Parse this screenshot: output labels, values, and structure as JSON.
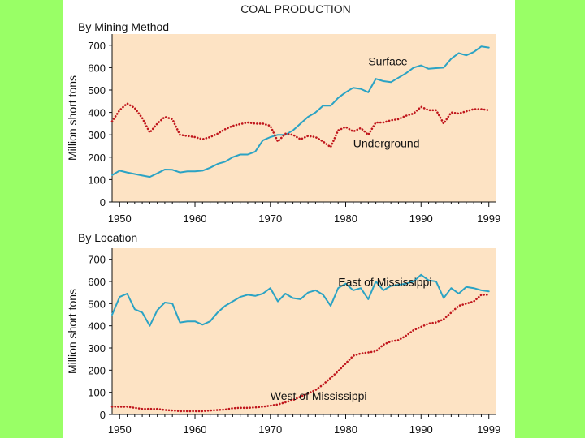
{
  "figure_title": "COAL PRODUCTION",
  "colors": {
    "background": "#99ff66",
    "plot_fill": "#fde3c4",
    "surface": "#2ba3c4",
    "underground": "#c0161c"
  },
  "chart_data": [
    {
      "type": "line",
      "title": "By Mining Method",
      "xlabel": "",
      "ylabel": "Million short tons",
      "xlim": [
        1949,
        2000
      ],
      "ylim": [
        0,
        750
      ],
      "xticks": [
        1950,
        1960,
        1970,
        1980,
        1990,
        1999
      ],
      "yticks": [
        0,
        100,
        200,
        300,
        400,
        500,
        600,
        700
      ],
      "x": [
        1949,
        1950,
        1951,
        1952,
        1953,
        1954,
        1955,
        1956,
        1957,
        1958,
        1959,
        1960,
        1961,
        1962,
        1963,
        1964,
        1965,
        1966,
        1967,
        1968,
        1969,
        1970,
        1971,
        1972,
        1973,
        1974,
        1975,
        1976,
        1977,
        1978,
        1979,
        1980,
        1981,
        1982,
        1983,
        1984,
        1985,
        1986,
        1987,
        1988,
        1989,
        1990,
        1991,
        1992,
        1993,
        1994,
        1995,
        1996,
        1997,
        1998,
        1999
      ],
      "series": [
        {
          "name": "Surface",
          "style": "solid",
          "values": [
            120,
            140,
            132,
            125,
            118,
            112,
            128,
            145,
            144,
            132,
            137,
            137,
            140,
            153,
            170,
            180,
            200,
            212,
            212,
            225,
            275,
            290,
            300,
            300,
            320,
            350,
            380,
            400,
            430,
            430,
            465,
            490,
            510,
            505,
            490,
            550,
            540,
            535,
            555,
            575,
            600,
            610,
            595,
            598,
            600,
            640,
            665,
            655,
            670,
            695,
            690
          ]
        },
        {
          "name": "Underground",
          "style": "dotted",
          "values": [
            360,
            410,
            440,
            420,
            375,
            310,
            350,
            380,
            370,
            300,
            295,
            290,
            280,
            290,
            305,
            325,
            340,
            348,
            355,
            350,
            350,
            340,
            270,
            305,
            300,
            280,
            295,
            290,
            270,
            245,
            320,
            335,
            315,
            330,
            300,
            355,
            355,
            365,
            370,
            385,
            395,
            425,
            410,
            410,
            350,
            400,
            395,
            405,
            415,
            415,
            410
          ]
        }
      ],
      "annotations": [
        {
          "text": "Surface",
          "x": 1983,
          "y": 610
        },
        {
          "text": "Underground",
          "x": 1981,
          "y": 245
        }
      ]
    },
    {
      "type": "line",
      "title": "By Location",
      "xlabel": "",
      "ylabel": "Million short tons",
      "xlim": [
        1949,
        2000
      ],
      "ylim": [
        0,
        750
      ],
      "xticks": [
        1950,
        1960,
        1970,
        1980,
        1990,
        1999
      ],
      "yticks": [
        0,
        100,
        200,
        300,
        400,
        500,
        600,
        700
      ],
      "x": [
        1949,
        1950,
        1951,
        1952,
        1953,
        1954,
        1955,
        1956,
        1957,
        1958,
        1959,
        1960,
        1961,
        1962,
        1963,
        1964,
        1965,
        1966,
        1967,
        1968,
        1969,
        1970,
        1971,
        1972,
        1973,
        1974,
        1975,
        1976,
        1977,
        1978,
        1979,
        1980,
        1981,
        1982,
        1983,
        1984,
        1985,
        1986,
        1987,
        1988,
        1989,
        1990,
        1991,
        1992,
        1993,
        1994,
        1995,
        1996,
        1997,
        1998,
        1999
      ],
      "series": [
        {
          "name": "East of Mississippi",
          "style": "solid",
          "values": [
            450,
            530,
            545,
            475,
            460,
            400,
            470,
            505,
            500,
            415,
            420,
            420,
            405,
            420,
            460,
            490,
            510,
            530,
            540,
            535,
            545,
            570,
            510,
            545,
            525,
            520,
            550,
            560,
            540,
            490,
            570,
            590,
            560,
            570,
            520,
            600,
            560,
            580,
            585,
            590,
            600,
            630,
            605,
            600,
            525,
            570,
            545,
            575,
            570,
            560,
            555
          ]
        },
        {
          "name": "West of Mississippi",
          "style": "dotted",
          "values": [
            35,
            35,
            35,
            30,
            25,
            25,
            25,
            20,
            18,
            15,
            15,
            15,
            15,
            18,
            20,
            22,
            28,
            30,
            30,
            32,
            35,
            40,
            45,
            55,
            65,
            80,
            95,
            110,
            135,
            165,
            195,
            230,
            265,
            275,
            280,
            285,
            315,
            330,
            335,
            355,
            380,
            395,
            410,
            415,
            430,
            460,
            490,
            500,
            510,
            540,
            540
          ]
        }
      ],
      "annotations": [
        {
          "text": "East of Mississippi",
          "x": 1979,
          "y": 580
        },
        {
          "text": "West of Mississippi",
          "x": 1970,
          "y": 65
        }
      ]
    }
  ]
}
